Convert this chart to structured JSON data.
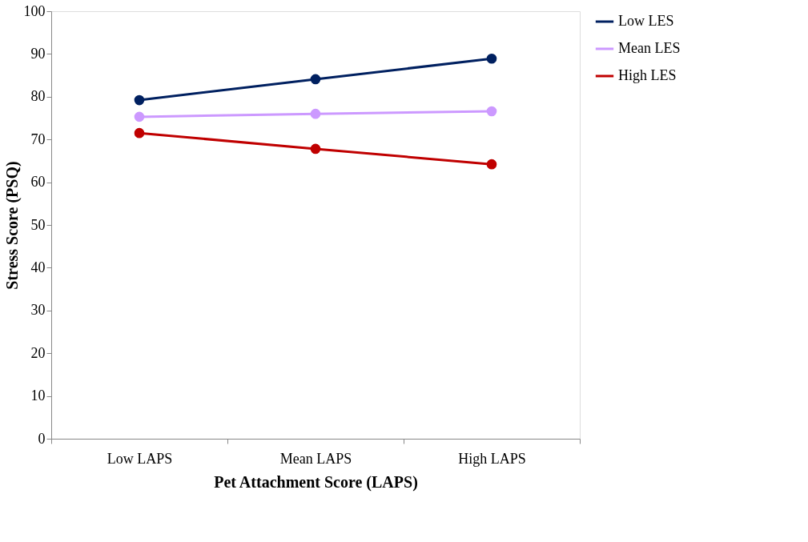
{
  "chart_data": {
    "type": "line",
    "xlabel": "Pet Attachment Score (LAPS)",
    "ylabel": "Stress Score (PSQ)",
    "categories": [
      "Low LAPS",
      "Mean LAPS",
      "High LAPS"
    ],
    "series": [
      {
        "name": "Low LES",
        "color": "#002060",
        "values": [
          79.2,
          84.1,
          88.9
        ]
      },
      {
        "name": "Mean LES",
        "color": "#cc99ff",
        "values": [
          75.3,
          76.0,
          76.6
        ]
      },
      {
        "name": "High LES",
        "color": "#c00000",
        "values": [
          71.5,
          67.8,
          64.2
        ]
      }
    ],
    "ylim": [
      0,
      100
    ],
    "yticks": [
      0,
      10,
      20,
      30,
      40,
      50,
      60,
      70,
      80,
      90,
      100
    ],
    "grid": false,
    "legend": "right",
    "marker": "circle",
    "line_style": "solid"
  }
}
